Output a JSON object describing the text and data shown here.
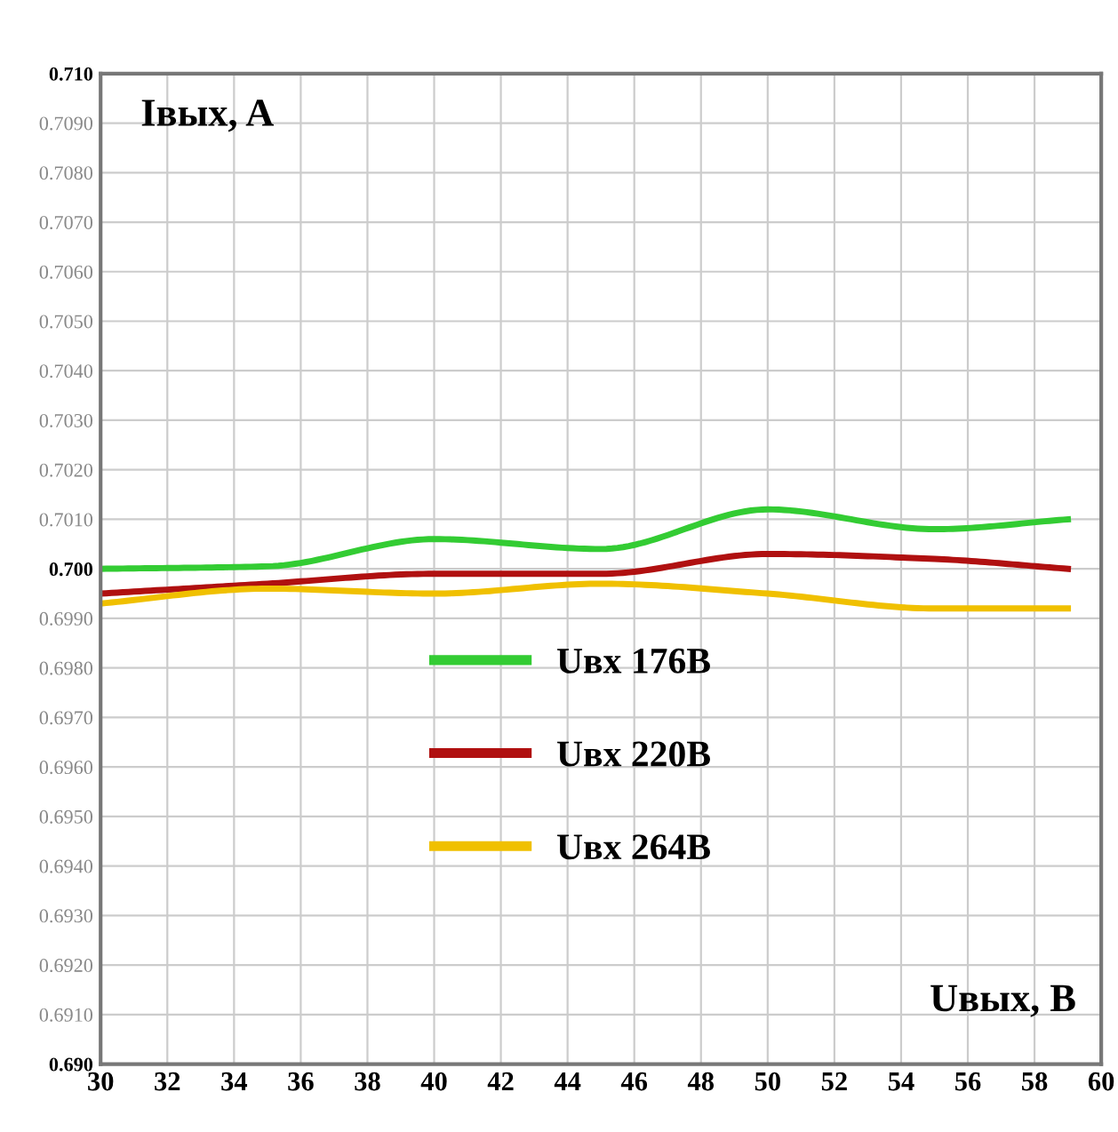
{
  "chart_data": {
    "type": "line",
    "xlabel": "Uвых, B",
    "ylabel": "Iвых, A",
    "x": [
      30,
      35,
      40,
      45,
      50,
      55,
      59
    ],
    "series": [
      {
        "name": "Uвх 176В",
        "color": "#33cc33",
        "values": [
          0.7,
          0.70005,
          0.7006,
          0.7004,
          0.7012,
          0.7008,
          0.701
        ]
      },
      {
        "name": "Uвх 220В",
        "color": "#b01010",
        "values": [
          0.6995,
          0.6997,
          0.6999,
          0.6999,
          0.7003,
          0.7002,
          0.7
        ]
      },
      {
        "name": "Uвх 264В",
        "color": "#f0c000",
        "values": [
          0.6993,
          0.6996,
          0.6995,
          0.6997,
          0.6995,
          0.6992,
          0.6992
        ]
      }
    ],
    "xlim": [
      30,
      60
    ],
    "xticks": [
      30,
      32,
      34,
      36,
      38,
      40,
      42,
      44,
      46,
      48,
      50,
      52,
      54,
      56,
      58,
      60
    ],
    "ylim": [
      0.69,
      0.71
    ],
    "yticks": [
      {
        "value": 0.69,
        "label": "0.690"
      },
      {
        "value": 0.691,
        "label": "0.6910"
      },
      {
        "value": 0.692,
        "label": "0.6920"
      },
      {
        "value": 0.693,
        "label": "0.6930"
      },
      {
        "value": 0.694,
        "label": "0.6940"
      },
      {
        "value": 0.695,
        "label": "0.6950"
      },
      {
        "value": 0.696,
        "label": "0.6960"
      },
      {
        "value": 0.697,
        "label": "0.6970"
      },
      {
        "value": 0.698,
        "label": "0.6980"
      },
      {
        "value": 0.699,
        "label": "0.6990"
      },
      {
        "value": 0.7,
        "label": "0.700"
      },
      {
        "value": 0.701,
        "label": "0.7010"
      },
      {
        "value": 0.702,
        "label": "0.7020"
      },
      {
        "value": 0.703,
        "label": "0.7030"
      },
      {
        "value": 0.704,
        "label": "0.7040"
      },
      {
        "value": 0.705,
        "label": "0.7050"
      },
      {
        "value": 0.706,
        "label": "0.7060"
      },
      {
        "value": 0.707,
        "label": "0.7070"
      },
      {
        "value": 0.708,
        "label": "0.7080"
      },
      {
        "value": 0.709,
        "label": "0.7090"
      },
      {
        "value": 0.71,
        "label": "0.710"
      }
    ],
    "grid": true,
    "legend": "center left",
    "marker": "none",
    "line_style": "solid"
  }
}
